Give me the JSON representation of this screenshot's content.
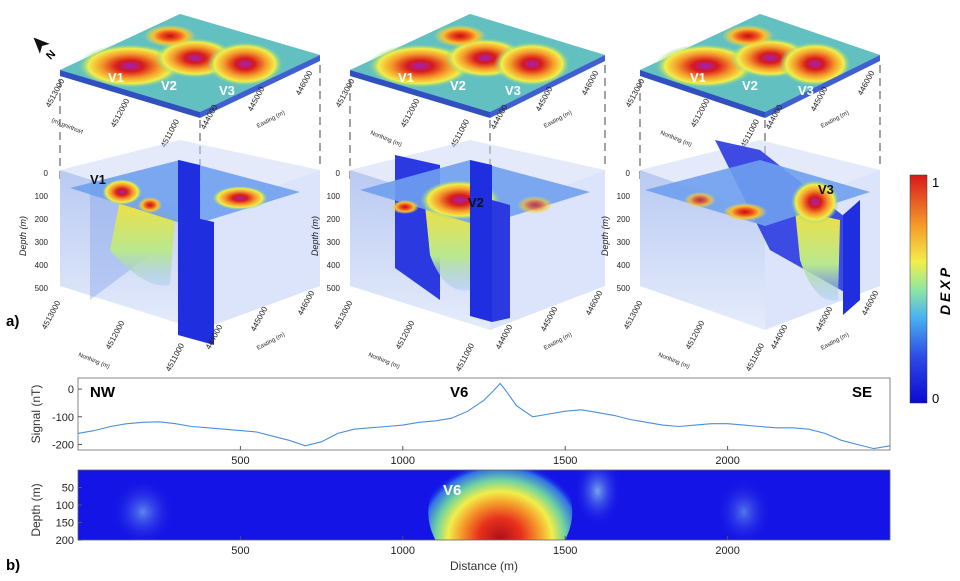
{
  "panel_a": {
    "label": "a)",
    "north_arrow": "N",
    "blocks": [
      {
        "surface_labels": [
          "V1",
          "V2",
          "V3"
        ],
        "section_label": "V1",
        "northing_ticks": [
          "4513000",
          "4512000",
          "4511000"
        ],
        "easting_ticks": [
          "444000",
          "445000",
          "446000"
        ],
        "northing_axis_title": "Northing (m)",
        "easting_axis_title": "Easting (m)",
        "depth_ticks": [
          "0",
          "100",
          "200",
          "300",
          "400",
          "500"
        ],
        "depth_title": "Depth (m)"
      },
      {
        "surface_labels": [
          "V1",
          "V2",
          "V3"
        ],
        "section_label": "V2",
        "northing_ticks": [
          "4513000",
          "4512000",
          "4511000"
        ],
        "easting_ticks": [
          "444000",
          "445000",
          "446000"
        ],
        "northing_axis_title": "Northing (m)",
        "easting_axis_title": "Easting (m)",
        "depth_ticks": [
          "0",
          "100",
          "200",
          "300",
          "400",
          "500"
        ],
        "depth_title": "Depth (m)"
      },
      {
        "surface_labels": [
          "V1",
          "V2",
          "V3"
        ],
        "section_label": "V3",
        "northing_ticks": [
          "4513000",
          "4512000",
          "4511000"
        ],
        "easting_ticks": [
          "444000",
          "445000",
          "446000"
        ],
        "northing_axis_title": "Northing (m)",
        "easting_axis_title": "Easting (m)",
        "depth_ticks": [
          "0",
          "100",
          "200",
          "300",
          "400",
          "500"
        ],
        "depth_title": "Depth (m)"
      }
    ],
    "colorbar": {
      "title": "DEXP",
      "max_label": "1",
      "min_label": "0"
    }
  },
  "panel_b": {
    "label": "b)",
    "anomaly_label": "V6",
    "section_label": "V6"
  },
  "colors": {
    "high": "#d7191c",
    "mid": "#ffd23f",
    "low": "#1414e6",
    "signal_line": "#4a90d9"
  },
  "chart_data": [
    {
      "type": "line",
      "title": "",
      "xlabel": "",
      "ylabel": "Signal (nT)",
      "xlim": [
        0,
        2500
      ],
      "ylim": [
        -220,
        40
      ],
      "x_ticks": [
        500,
        1000,
        1500,
        2000
      ],
      "y_ticks": [
        0,
        -100,
        -200
      ],
      "grid": false,
      "annotations": [
        "NW",
        "SE",
        "V6"
      ],
      "series": [
        {
          "x": [
            0,
            50,
            100,
            150,
            200,
            250,
            300,
            350,
            400,
            450,
            500,
            550,
            600,
            650,
            700,
            750,
            800,
            850,
            900,
            950,
            1000,
            1050,
            1100,
            1150,
            1200,
            1250,
            1280,
            1300,
            1320,
            1350,
            1400,
            1450,
            1500,
            1550,
            1600,
            1650,
            1700,
            1750,
            1800,
            1850,
            1900,
            1950,
            2000,
            2050,
            2100,
            2150,
            2200,
            2250,
            2300,
            2350,
            2400,
            2450,
            2500
          ],
          "y": [
            -160,
            -150,
            -135,
            -125,
            -120,
            -118,
            -125,
            -135,
            -140,
            -145,
            -150,
            -155,
            -170,
            -185,
            -205,
            -190,
            -160,
            -145,
            -140,
            -135,
            -130,
            -120,
            -115,
            -105,
            -80,
            -40,
            -5,
            20,
            -10,
            -60,
            -100,
            -90,
            -80,
            -75,
            -85,
            -95,
            -110,
            -120,
            -130,
            -135,
            -130,
            -125,
            -125,
            -130,
            -135,
            -140,
            -140,
            -145,
            -160,
            -185,
            -200,
            -215,
            -205
          ]
        }
      ]
    },
    {
      "type": "heatmap",
      "title": "",
      "xlabel": "Distance (m)",
      "ylabel": "Depth (m)",
      "xlim": [
        0,
        2500
      ],
      "ylim": [
        200,
        0
      ],
      "x_ticks": [
        500,
        1000,
        1500,
        2000
      ],
      "y_ticks": [
        50,
        100,
        150,
        200
      ],
      "value_range": [
        0,
        1
      ],
      "anomalies": [
        {
          "x": 1300,
          "depth": 120,
          "value": 1.0
        },
        {
          "x": 1600,
          "depth": 60,
          "value": 0.35
        },
        {
          "x": 200,
          "depth": 120,
          "value": 0.2
        },
        {
          "x": 2050,
          "depth": 120,
          "value": 0.2
        }
      ]
    }
  ]
}
